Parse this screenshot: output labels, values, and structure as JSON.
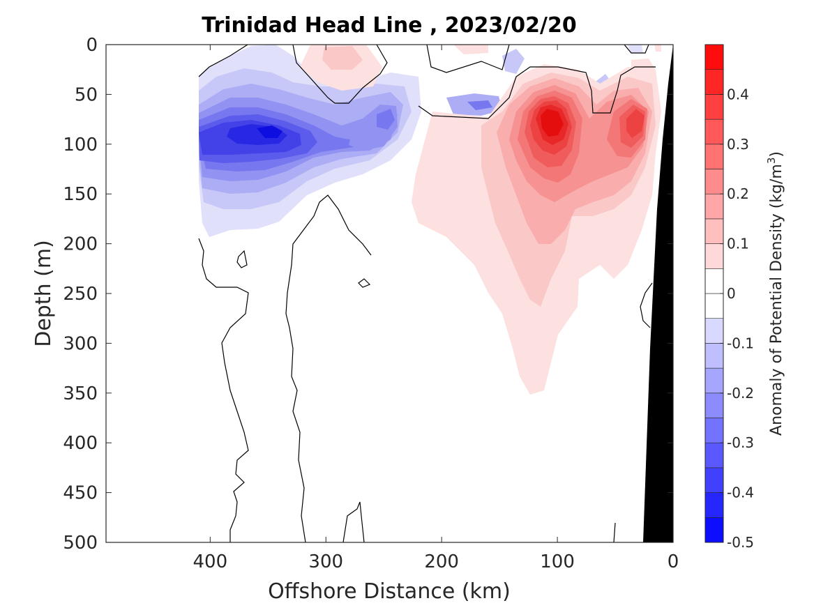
{
  "chart_data": {
    "type": "heatmap",
    "title": "Trinidad Head Line , 2023/02/20",
    "xlabel": "Offshore Distance (km)",
    "ylabel": "Depth (m)",
    "colorbar_label_main": "Anomaly of Potential Density (kg/m",
    "colorbar_label_sup": "3",
    "colorbar_label_end": ")",
    "xlim": [
      490,
      0
    ],
    "ylim": [
      0,
      500
    ],
    "y_reversed": true,
    "x_reversed": true,
    "x_ticks": [
      "400",
      "300",
      "200",
      "100",
      "0"
    ],
    "y_ticks": [
      "0",
      "50",
      "100",
      "150",
      "200",
      "250",
      "300",
      "350",
      "400",
      "450",
      "500"
    ],
    "colorbar_ticks": [
      "0.4",
      "0.3",
      "0.2",
      "0.1",
      "0",
      "-0.1",
      "-0.2",
      "-0.3",
      "-0.4",
      "-0.5"
    ],
    "colorbar_range": [
      -0.5,
      0.5
    ],
    "colormap": "blue-white-red, 20 discrete levels",
    "data_extent_x_km": [
      410,
      0
    ],
    "features": [
      {
        "name": "negative anomaly core",
        "x_km": 350,
        "depth_m": 85,
        "value": -0.45
      },
      {
        "name": "negative anomaly secondary",
        "x_km": 250,
        "depth_m": 85,
        "value": -0.25
      },
      {
        "name": "positive anomaly core",
        "x_km": 108,
        "depth_m": 80,
        "value": 0.45
      },
      {
        "name": "positive anomaly nearshore",
        "x_km": 30,
        "depth_m": 80,
        "value": 0.35
      },
      {
        "name": "positive anomaly surface",
        "x_km": 280,
        "depth_m": 15,
        "value": 0.1
      }
    ],
    "grid": false
  }
}
